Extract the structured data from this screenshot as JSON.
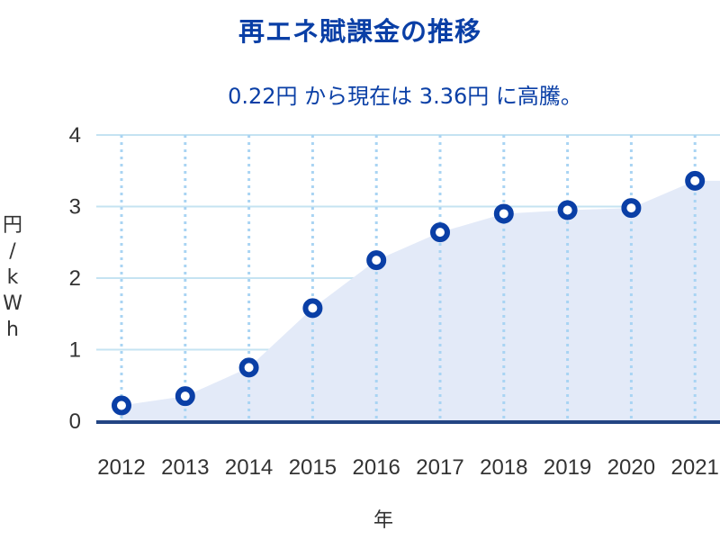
{
  "title": "再エネ賦課金の推移",
  "subtitle": "0.22円 から現在は 3.36円 に高騰。",
  "colors": {
    "title": "#0a3fa6",
    "area_fill": "#e3eaf8",
    "marker": "#0a3fa6",
    "gridline": "#c5e3f2",
    "vertical_gridline": "#a9d4f3",
    "baseline": "#234583"
  },
  "chart_data": {
    "type": "area",
    "title": "再エネ賦課金の推移",
    "subtitle": "0.22円 から現在は 3.36円 に高騰。",
    "xlabel": "年",
    "ylabel": [
      "円",
      "/",
      "k",
      "W",
      "h"
    ],
    "categories": [
      "2012",
      "2013",
      "2014",
      "2015",
      "2016",
      "2017",
      "2018",
      "2019",
      "2020",
      "2021"
    ],
    "values": [
      0.22,
      0.35,
      0.75,
      1.58,
      2.25,
      2.64,
      2.9,
      2.95,
      2.98,
      3.36
    ],
    "yticks": [
      "0",
      "1",
      "2",
      "3",
      "4"
    ],
    "ylim": [
      0,
      4
    ],
    "grid": true,
    "legend": "none"
  }
}
